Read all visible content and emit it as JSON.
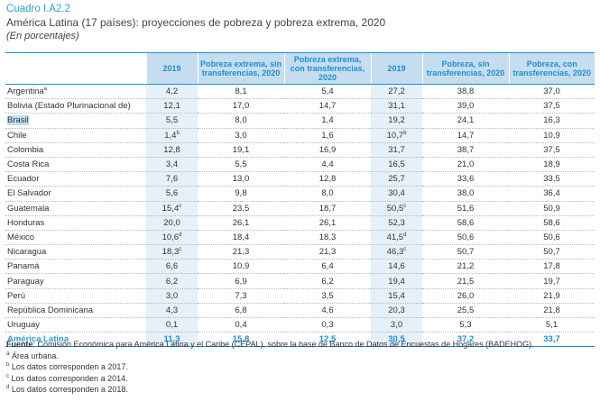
{
  "header": {
    "cuadro": "Cuadro I.A2.2",
    "title": "América Latina (17 países): proyecciones de pobreza y pobreza extrema, 2020",
    "subtitle": "(En porcentajes)"
  },
  "columns": [
    "",
    "2019",
    "Pobreza extrema, sin transferencias, 2020",
    "Pobreza extrema, con transferencias, 2020",
    "2019",
    "Pobreza, sin transferencias, 2020",
    "Pobreza, con transferencias, 2020"
  ],
  "rows": [
    {
      "country": "Argentina",
      "sup": "a",
      "v": [
        "4,2",
        "8,1",
        "5,4",
        "27,2",
        "38,8",
        "37,0"
      ],
      "vsup": [
        "",
        "",
        "",
        "",
        "",
        ""
      ]
    },
    {
      "country": "Bolivia (Estado Plurinacional de)",
      "sup": "",
      "v": [
        "12,1",
        "17,0",
        "14,7",
        "31,1",
        "39,0",
        "37,5"
      ],
      "vsup": [
        "",
        "",
        "",
        "",
        "",
        ""
      ]
    },
    {
      "country": "Brasil",
      "sup": "",
      "v": [
        "5,5",
        "8,0",
        "1,4",
        "19,2",
        "24,1",
        "16,3"
      ],
      "vsup": [
        "",
        "",
        "",
        "",
        "",
        ""
      ]
    },
    {
      "country": "Chile",
      "sup": "",
      "v": [
        "1,4",
        "3,0",
        "1,6",
        "10,7",
        "14,7",
        "10,9"
      ],
      "vsup": [
        "b",
        "",
        "",
        "b",
        "",
        ""
      ]
    },
    {
      "country": "Colombia",
      "sup": "",
      "v": [
        "12,8",
        "19,1",
        "16,9",
        "31,7",
        "38,7",
        "37,5"
      ],
      "vsup": [
        "",
        "",
        "",
        "",
        "",
        ""
      ]
    },
    {
      "country": "Costa Rica",
      "sup": "",
      "v": [
        "3,4",
        "5,5",
        "4,4",
        "16,5",
        "21,0",
        "18,9"
      ],
      "vsup": [
        "",
        "",
        "",
        "",
        "",
        ""
      ]
    },
    {
      "country": "Ecuador",
      "sup": "",
      "v": [
        "7,6",
        "13,0",
        "12,8",
        "25,7",
        "33,6",
        "33,5"
      ],
      "vsup": [
        "",
        "",
        "",
        "",
        "",
        ""
      ]
    },
    {
      "country": "El Salvador",
      "sup": "",
      "v": [
        "5,6",
        "9,8",
        "8,0",
        "30,4",
        "38,0",
        "36,4"
      ],
      "vsup": [
        "",
        "",
        "",
        "",
        "",
        ""
      ]
    },
    {
      "country": "Guatemala",
      "sup": "",
      "v": [
        "15,4",
        "23,5",
        "18,7",
        "50,5",
        "51,6",
        "50,9"
      ],
      "vsup": [
        "c",
        "",
        "",
        "c",
        "",
        ""
      ]
    },
    {
      "country": "Honduras",
      "sup": "",
      "v": [
        "20,0",
        "26,1",
        "26,1",
        "52,3",
        "58,6",
        "58,6"
      ],
      "vsup": [
        "",
        "",
        "",
        "",
        "",
        ""
      ]
    },
    {
      "country": "México",
      "sup": "",
      "v": [
        "10,6",
        "18,4",
        "18,3",
        "41,5",
        "50,6",
        "50,6"
      ],
      "vsup": [
        "d",
        "",
        "",
        "d",
        "",
        ""
      ]
    },
    {
      "country": "Nicaragua",
      "sup": "",
      "v": [
        "18,3",
        "21,3",
        "21,3",
        "46,3",
        "50,7",
        "50,7"
      ],
      "vsup": [
        "c",
        "",
        "",
        "c",
        "",
        ""
      ]
    },
    {
      "country": "Panamá",
      "sup": "",
      "v": [
        "6,6",
        "10,9",
        "6,4",
        "14,6",
        "21,2",
        "17,8"
      ],
      "vsup": [
        "",
        "",
        "",
        "",
        "",
        ""
      ]
    },
    {
      "country": "Paraguay",
      "sup": "",
      "v": [
        "6,2",
        "6,9",
        "6,2",
        "19,4",
        "21,5",
        "19,7"
      ],
      "vsup": [
        "",
        "",
        "",
        "",
        "",
        ""
      ]
    },
    {
      "country": "Perú",
      "sup": "",
      "v": [
        "3,0",
        "7,3",
        "3,5",
        "15,4",
        "26,0",
        "21,9"
      ],
      "vsup": [
        "",
        "",
        "",
        "",
        "",
        ""
      ]
    },
    {
      "country": "República Dominicana",
      "sup": "",
      "v": [
        "4,3",
        "6,8",
        "4,6",
        "20,3",
        "25,5",
        "21,8"
      ],
      "vsup": [
        "",
        "",
        "",
        "",
        "",
        ""
      ]
    },
    {
      "country": "Uruguay",
      "sup": "",
      "v": [
        "0,1",
        "0,4",
        "0,3",
        "3,0",
        "5,3",
        "5,1"
      ],
      "vsup": [
        "",
        "",
        "",
        "",
        "",
        ""
      ]
    }
  ],
  "total": {
    "country": "América Latina",
    "v": [
      "11,3",
      "15,8",
      "12,5",
      "30,5",
      "37,2",
      "33,7"
    ]
  },
  "notes": {
    "fuente_label": "Fuente",
    "fuente_text": ": Comisión Económica para América Latina y el Caribe (CEPAL), sobre la base de Banco de Datos de Encuestas de Hogares (BADEHOG).",
    "items": [
      {
        "mark": "a",
        "text": "Área urbana."
      },
      {
        "mark": "b",
        "text": "Los datos corresponden a 2017."
      },
      {
        "mark": "c",
        "text": "Los datos corresponden a 2014."
      },
      {
        "mark": "d",
        "text": "Los datos corresponden a 2018."
      }
    ]
  }
}
